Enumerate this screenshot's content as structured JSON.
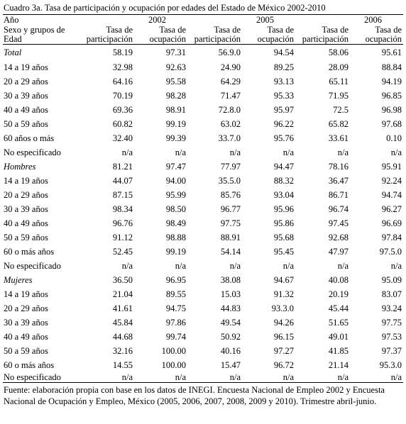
{
  "caption": "Cuadro 3a. Tasa de participación y ocupación por edades del Estado de México 2002-2010",
  "header": {
    "year_label": "Año",
    "row_label": "Sexo y grupos de Edad",
    "years": [
      "2002",
      "2005",
      "2006"
    ],
    "col_participacion": "Tasa de participación",
    "col_ocupacion": "Tasa de ocupación"
  },
  "rows": [
    {
      "label": "Total",
      "italic": true,
      "values": [
        "58.19",
        "97.31",
        "56.9.0",
        "94.54",
        "58.06",
        "95.61"
      ]
    },
    {
      "label": "14 a 19 años",
      "italic": false,
      "values": [
        "32.98",
        "92.63",
        "24.90",
        "89.25",
        "28.09",
        "88.84"
      ]
    },
    {
      "label": "20 a 29 años",
      "italic": false,
      "values": [
        "64.16",
        "95.58",
        "64.29",
        "93.13",
        "65.11",
        "94.19"
      ]
    },
    {
      "label": "30 a 39 años",
      "italic": false,
      "values": [
        "70.19",
        "98.28",
        "71.47",
        "95.33",
        "71.95",
        "96.85"
      ]
    },
    {
      "label": "40 a 49 años",
      "italic": false,
      "values": [
        "69.36",
        "98.91",
        "72.8.0",
        "95.97",
        "72.5",
        "96.98"
      ]
    },
    {
      "label": "50 a 59 años",
      "italic": false,
      "values": [
        "60.82",
        "99.19",
        "63.02",
        "96.22",
        "65.82",
        "97.68"
      ]
    },
    {
      "label": "60 años o más",
      "italic": false,
      "values": [
        "32.40",
        "99.39",
        "33.7.0",
        "95.76",
        "33.61",
        "0.10"
      ]
    },
    {
      "label": "No especificado",
      "italic": false,
      "values": [
        "n/a",
        "n/a",
        "n/a",
        "n/a",
        "n/a",
        "n/a"
      ]
    },
    {
      "label": "Hombres",
      "italic": true,
      "values": [
        "81.21",
        "97.47",
        "77.97",
        "94.47",
        "78.16",
        "95.91"
      ]
    },
    {
      "label": "14 a 19 años",
      "italic": false,
      "values": [
        "44.07",
        "94.00",
        "35.5.0",
        "88.32",
        "36.47",
        "92.24"
      ]
    },
    {
      "label": "20 a 29 años",
      "italic": false,
      "values": [
        "87.15",
        "95.99",
        "85.76",
        "93.04",
        "86.71",
        "94.74"
      ]
    },
    {
      "label": "30 a 39 años",
      "italic": false,
      "values": [
        "98.34",
        "98.50",
        "96.77",
        "95.96",
        "96.74",
        "96.27"
      ]
    },
    {
      "label": "40 a 49 años",
      "italic": false,
      "values": [
        "96.76",
        "98.49",
        "97.75",
        "95.86",
        "97.45",
        "96.69"
      ]
    },
    {
      "label": "50 a 59 años",
      "italic": false,
      "values": [
        "91.12",
        "98.88",
        "88.91",
        "95.68",
        "92.68",
        "97.84"
      ]
    },
    {
      "label": "60 o más años",
      "italic": false,
      "values": [
        "52.45",
        "99.19",
        "54.14",
        "95.45",
        "47.97",
        "97.5.0"
      ]
    },
    {
      "label": "No especificado",
      "italic": false,
      "values": [
        "n/a",
        "n/a",
        "n/a",
        "n/a",
        "n/a",
        "n/a"
      ]
    },
    {
      "label": "Mujeres",
      "italic": true,
      "values": [
        "36.50",
        "96.95",
        "38.08",
        "94.67",
        "40.08",
        "95.09"
      ]
    },
    {
      "label": "14 a 19 años",
      "italic": false,
      "values": [
        "21.04",
        "89.55",
        "15.03",
        "91.32",
        "20.19",
        "83.07"
      ]
    },
    {
      "label": "20 a 29 años",
      "italic": false,
      "values": [
        "41.61",
        "94.75",
        "44.83",
        "93.3.0",
        "45.44",
        "93.24"
      ]
    },
    {
      "label": "30 a 39 años",
      "italic": false,
      "values": [
        "45.84",
        "97.86",
        "49.54",
        "94.26",
        "51.65",
        "97.75"
      ]
    },
    {
      "label": "40 a 49 años",
      "italic": false,
      "values": [
        "44.68",
        "99.74",
        "50.92",
        "96.15",
        "49.01",
        "97.53"
      ]
    },
    {
      "label": "50 a 59 años",
      "italic": false,
      "values": [
        "32.16",
        "100.00",
        "40.16",
        "97.27",
        "41.85",
        "97.37"
      ]
    },
    {
      "label": "60 o más años",
      "italic": false,
      "values": [
        "14.55",
        "100.00",
        "15.47",
        "96.72",
        "21.14",
        "95.3.0"
      ]
    },
    {
      "label": "No especificado",
      "italic": false,
      "values": [
        "n/a",
        "n/a",
        "n/a",
        "n/a",
        "n/a",
        "n/a"
      ]
    }
  ],
  "footnote": "Fuente: elaboración propia con base en los datos de INEGI. Encuesta Nacional de Empleo 2002 y Encuesta Nacional de Ocupación y Empleo, México (2005, 2006, 2007, 2008, 2009 y 2010). Trimestre abril-junio."
}
